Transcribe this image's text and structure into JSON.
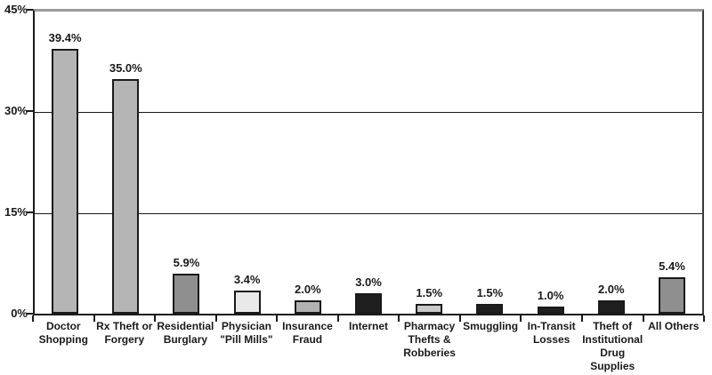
{
  "chart_data": {
    "type": "bar",
    "title": "",
    "xlabel": "",
    "ylabel": "",
    "categories": [
      "Doctor Shopping",
      "Rx Theft or Forgery",
      "Residential Burglary",
      "Physician \"Pill Mills\"",
      "Insurance Fraud",
      "Internet",
      "Pharmacy Thefts & Robberies",
      "Smuggling",
      "In-Transit Losses",
      "Theft of Institutional Drug Supplies",
      "All Others"
    ],
    "display_labels": [
      "Doctor\nShopping",
      "Rx Theft or\nForgery",
      "Residential\nBurglary",
      "Physician\n\"Pill Mills\"",
      "Insurance\nFraud",
      "Internet",
      "Pharmacy\nThefts &\nRobberies",
      "Smuggling",
      "In-Transit\nLosses",
      "Theft of\nInstitutional\nDrug\nSupplies",
      "All Others"
    ],
    "values": [
      39.4,
      35.0,
      5.9,
      3.4,
      2.0,
      3.0,
      1.5,
      1.5,
      1.0,
      2.0,
      5.4
    ],
    "value_labels": [
      "39.4%",
      "35.0%",
      "5.9%",
      "3.4%",
      "2.0%",
      "3.0%",
      "1.5%",
      "1.5%",
      "1.0%",
      "2.0%",
      "5.4%"
    ],
    "bar_colors": [
      "#b5b5b5",
      "#b5b5b5",
      "#8f8f8f",
      "#e9e9e9",
      "#b2b2b2",
      "#1f1f1f",
      "#c9c9c9",
      "#1f1f1f",
      "#1f1f1f",
      "#1f1f1f",
      "#8f8f8f"
    ],
    "bar_border_color": "#1a1a1a",
    "ylim": [
      0,
      45
    ],
    "ytick_labels": [
      "45%",
      "30%",
      "15%",
      "0%"
    ],
    "ytick_values": [
      45,
      30,
      15,
      0
    ],
    "gridline_values": [
      30,
      15
    ],
    "grid": "horizontal",
    "legend": "none",
    "frame": {
      "top_border_color": "#9a9a9a",
      "axis_color": "#1a1a1a"
    }
  }
}
